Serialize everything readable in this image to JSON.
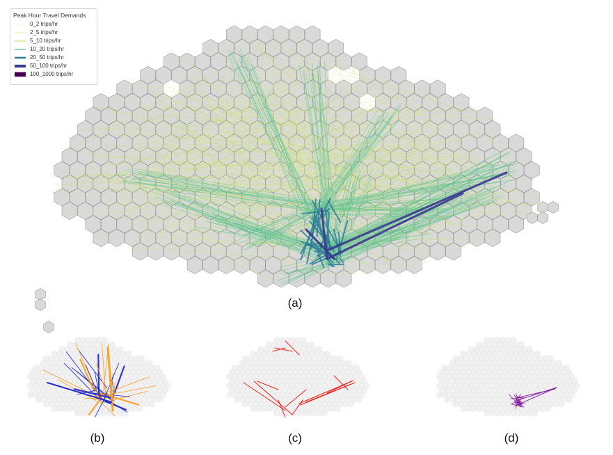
{
  "legend": {
    "title": "Peak Hour Travel Demands",
    "entries": [
      {
        "label": "0_2 trips/hr",
        "color": "#f5f7d8",
        "weight": 0.5
      },
      {
        "label": "2_5 trips/hr",
        "color": "#e6ef9e",
        "weight": 0.6
      },
      {
        "label": "5_10 trips/hr",
        "color": "#bfe06a",
        "weight": 0.8
      },
      {
        "label": "10_20 trips/hr",
        "color": "#5ec48e",
        "weight": 1.0
      },
      {
        "label": "20_50 trips/hr",
        "color": "#2f7e9a",
        "weight": 2.0
      },
      {
        "label": "50_100 trips/hr",
        "color": "#3b3b8e",
        "weight": 3.2
      },
      {
        "label": "100_1000 trips/hr",
        "color": "#440154",
        "weight": 5.0
      }
    ]
  },
  "panels": {
    "a": {
      "label": "(a)"
    },
    "b": {
      "label": "(b)",
      "colors": [
        "#1a22c8",
        "#f5a020"
      ]
    },
    "c": {
      "label": "(c)",
      "colors": [
        "#e8170f"
      ]
    },
    "d": {
      "label": "(d)",
      "colors": [
        "#7b0f9a"
      ]
    }
  },
  "colors": {
    "hex_fill": "#d9d9d9",
    "hex_stroke": "#9a9a9a",
    "small_hex_fill": "#f1f1f1",
    "small_hex_stroke": "#e2e2e2"
  }
}
